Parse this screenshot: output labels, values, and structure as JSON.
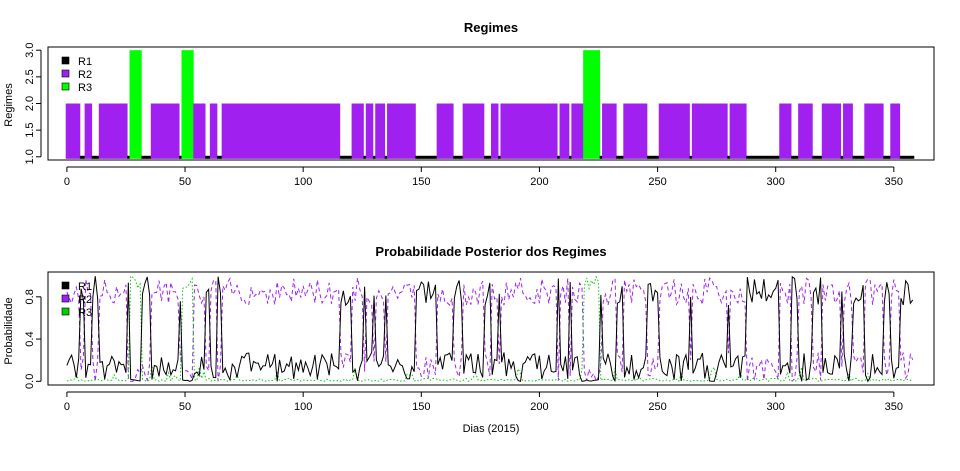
{
  "chart_data": [
    {
      "type": "bar",
      "title": "Regimes",
      "xlabel": "",
      "ylabel": "Regimes",
      "xlim": [
        -8,
        367
      ],
      "ylim": [
        0.94,
        3.06
      ],
      "xticks": [
        "0",
        "50",
        "100",
        "150",
        "200",
        "250",
        "300",
        "350"
      ],
      "yticks": [
        "1.0",
        "1.5",
        "2.0",
        "2.5",
        "3.0"
      ],
      "legend": {
        "position": "top-left",
        "entries": [
          "R1",
          "R2",
          "R3"
        ]
      },
      "colors": {
        "R1": "#000000",
        "R2": "#A020F0",
        "R3": "#00FF00"
      },
      "r2_runs": [
        [
          0,
          5
        ],
        [
          8,
          10
        ],
        [
          14,
          21
        ],
        [
          22,
          25
        ],
        [
          36,
          47
        ],
        [
          54,
          58
        ],
        [
          61,
          63
        ],
        [
          66,
          67
        ],
        [
          68,
          73
        ],
        [
          74,
          86
        ],
        [
          87,
          90
        ],
        [
          91,
          98
        ],
        [
          99,
          105
        ],
        [
          106,
          109
        ],
        [
          110,
          115
        ],
        [
          121,
          125
        ],
        [
          127,
          129
        ],
        [
          131,
          134
        ],
        [
          136,
          143
        ],
        [
          144,
          147
        ],
        [
          157,
          163
        ],
        [
          168,
          171
        ],
        [
          172,
          176
        ],
        [
          180,
          182
        ],
        [
          184,
          196
        ],
        [
          197,
          207
        ],
        [
          209,
          212
        ],
        [
          214,
          218
        ],
        [
          227,
          229
        ],
        [
          230,
          232
        ],
        [
          236,
          239
        ],
        [
          240,
          245
        ],
        [
          251,
          259
        ],
        [
          260,
          263
        ],
        [
          265,
          268
        ],
        [
          269,
          279
        ],
        [
          281,
          287
        ],
        [
          302,
          306
        ],
        [
          310,
          315
        ],
        [
          320,
          327
        ],
        [
          329,
          332
        ],
        [
          338,
          345
        ],
        [
          349,
          352
        ]
      ],
      "r3_runs": [
        [
          27,
          31
        ],
        [
          49,
          53
        ],
        [
          219,
          225
        ]
      ],
      "r1_fill": true
    },
    {
      "type": "line",
      "title": "Probabilidade Posterior dos Regimes",
      "xlabel": "Dias (2015)",
      "ylabel": "Probabilidade",
      "xlim": [
        -8,
        367
      ],
      "ylim": [
        -0.035,
        1.035
      ],
      "xticks": [
        "0",
        "50",
        "100",
        "150",
        "200",
        "250",
        "300",
        "350"
      ],
      "yticks": [
        "0.0",
        "0.4",
        "0.8"
      ],
      "legend": {
        "position": "top-left",
        "entries": [
          "R1",
          "R2",
          "R3"
        ]
      },
      "series": [
        {
          "name": "R1",
          "color": "#000000",
          "dash": "solid"
        },
        {
          "name": "R2",
          "color": "#A020F0",
          "dash": "dashed"
        },
        {
          "name": "R3",
          "color": "#00CD00",
          "dash": "dotted"
        }
      ]
    }
  ]
}
